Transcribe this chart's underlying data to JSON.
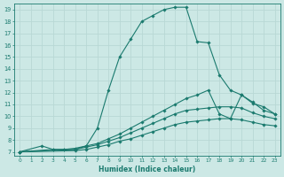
{
  "xlabel": "Humidex (Indice chaleur)",
  "ylabel": "",
  "background_color": "#cce8e5",
  "grid_color": "#b8d8d5",
  "line_color": "#1a7a6e",
  "xlim": [
    -0.5,
    23.5
  ],
  "ylim": [
    6.7,
    19.5
  ],
  "xticks": [
    0,
    1,
    2,
    3,
    4,
    5,
    6,
    7,
    8,
    9,
    10,
    11,
    12,
    13,
    14,
    15,
    16,
    17,
    18,
    19,
    20,
    21,
    22,
    23
  ],
  "yticks": [
    7,
    8,
    9,
    10,
    11,
    12,
    13,
    14,
    15,
    16,
    17,
    18,
    19
  ],
  "lines": [
    {
      "x": [
        0,
        2,
        3,
        4,
        5,
        6,
        7,
        8,
        9,
        10,
        11,
        12,
        13,
        14,
        15,
        16,
        17,
        18,
        19,
        20,
        21,
        22,
        23
      ],
      "y": [
        7,
        7.5,
        7.2,
        7.2,
        7.2,
        7.5,
        9.0,
        12.2,
        15.0,
        16.5,
        18.0,
        18.5,
        19.0,
        19.2,
        19.2,
        16.3,
        16.2,
        13.5,
        12.2,
        11.8,
        11.1,
        10.8,
        10.2
      ]
    },
    {
      "x": [
        0,
        3,
        4,
        5,
        6,
        7,
        8,
        9,
        10,
        11,
        12,
        13,
        14,
        15,
        16,
        17,
        18,
        19,
        20,
        21,
        22,
        23
      ],
      "y": [
        7,
        7.2,
        7.2,
        7.3,
        7.5,
        7.7,
        8.1,
        8.5,
        9.0,
        9.5,
        10.0,
        10.5,
        11.0,
        11.5,
        11.8,
        12.2,
        10.2,
        9.8,
        11.8,
        11.2,
        10.5,
        10.2
      ]
    },
    {
      "x": [
        0,
        5,
        6,
        7,
        8,
        9,
        10,
        11,
        12,
        13,
        14,
        15,
        16,
        17,
        18,
        19,
        20,
        21,
        22,
        23
      ],
      "y": [
        7,
        7.2,
        7.4,
        7.6,
        7.9,
        8.2,
        8.6,
        9.0,
        9.4,
        9.8,
        10.2,
        10.5,
        10.6,
        10.7,
        10.8,
        10.8,
        10.7,
        10.3,
        10.0,
        9.8
      ]
    },
    {
      "x": [
        0,
        5,
        6,
        7,
        8,
        9,
        10,
        11,
        12,
        13,
        14,
        15,
        16,
        17,
        18,
        19,
        20,
        21,
        22,
        23
      ],
      "y": [
        7,
        7.1,
        7.2,
        7.4,
        7.6,
        7.9,
        8.1,
        8.4,
        8.7,
        9.0,
        9.3,
        9.5,
        9.6,
        9.7,
        9.8,
        9.8,
        9.7,
        9.5,
        9.3,
        9.2
      ]
    }
  ]
}
